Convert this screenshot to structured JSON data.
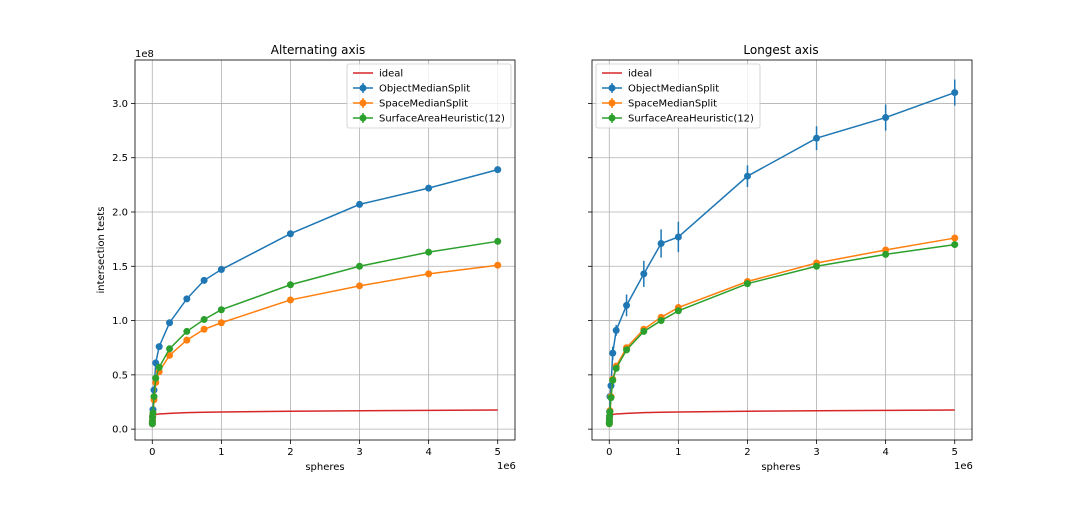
{
  "chart_data": {
    "shared": {
      "type": "line",
      "xlabel": "spheres",
      "ylabel": "intersection tests",
      "x_multiplier": "1e6",
      "y_multiplier": "1e8",
      "xlim": [
        -0.25,
        5.25
      ],
      "ylim": [
        -0.1,
        3.4
      ],
      "xticks": [
        0,
        1,
        2,
        3,
        4,
        5
      ],
      "yticks": [
        0.0,
        0.5,
        1.0,
        1.5,
        2.0,
        2.5,
        3.0
      ],
      "ytick_labels": [
        "0.0",
        "0.5",
        "1.0",
        "1.5",
        "2.0",
        "2.5",
        "3.0"
      ],
      "grid": true,
      "legend_position": "upper-right for left panel, upper-left for right panel",
      "colors": {
        "ideal": "#d62728",
        "ObjectMedianSplit": "#1f77b4",
        "SpaceMedianSplit": "#ff7f0e",
        "SurfaceAreaHeuristic(12)": "#2ca02c"
      }
    },
    "panels": [
      {
        "title": "Alternating axis",
        "series": [
          {
            "name": "ideal",
            "style": "line",
            "x": [
              0.001,
              0.002,
              0.005,
              0.01,
              0.025,
              0.05,
              0.1,
              0.25,
              0.5,
              0.75,
              1,
              2,
              3,
              4,
              5
            ],
            "values": [
              0.1,
              0.11,
              0.12,
              0.125,
              0.13,
              0.135,
              0.14,
              0.145,
              0.152,
              0.156,
              0.158,
              0.165,
              0.17,
              0.173,
              0.176
            ]
          },
          {
            "name": "ObjectMedianSplit",
            "style": "errorbar",
            "x": [
              0.001,
              0.002,
              0.005,
              0.01,
              0.025,
              0.05,
              0.1,
              0.25,
              0.5,
              0.75,
              1,
              2,
              3,
              4,
              5
            ],
            "values": [
              0.05,
              0.08,
              0.12,
              0.18,
              0.36,
              0.61,
              0.76,
              0.98,
              1.2,
              1.37,
              1.47,
              1.8,
              2.07,
              2.22,
              2.39
            ],
            "errors": [
              0,
              0,
              0,
              0,
              0,
              0,
              0,
              0,
              0,
              0,
              0,
              0,
              0,
              0,
              0
            ]
          },
          {
            "name": "SpaceMedianSplit",
            "style": "errorbar",
            "x": [
              0.001,
              0.002,
              0.005,
              0.01,
              0.025,
              0.05,
              0.1,
              0.25,
              0.5,
              0.75,
              1,
              2,
              3,
              4,
              5
            ],
            "values": [
              0.05,
              0.07,
              0.1,
              0.14,
              0.27,
              0.43,
              0.53,
              0.68,
              0.82,
              0.92,
              0.98,
              1.19,
              1.32,
              1.43,
              1.51
            ],
            "errors": [
              0,
              0,
              0,
              0,
              0,
              0,
              0,
              0,
              0,
              0,
              0,
              0,
              0,
              0,
              0
            ]
          },
          {
            "name": "SurfaceAreaHeuristic(12)",
            "style": "errorbar",
            "x": [
              0.001,
              0.002,
              0.005,
              0.01,
              0.025,
              0.05,
              0.1,
              0.25,
              0.5,
              0.75,
              1,
              2,
              3,
              4,
              5
            ],
            "values": [
              0.05,
              0.07,
              0.11,
              0.15,
              0.3,
              0.47,
              0.57,
              0.74,
              0.9,
              1.01,
              1.1,
              1.33,
              1.5,
              1.63,
              1.73
            ],
            "errors": [
              0,
              0,
              0,
              0,
              0,
              0,
              0,
              0,
              0,
              0,
              0,
              0,
              0,
              0,
              0
            ]
          }
        ]
      },
      {
        "title": "Longest axis",
        "series": [
          {
            "name": "ideal",
            "style": "line",
            "x": [
              0.001,
              0.002,
              0.005,
              0.01,
              0.025,
              0.05,
              0.1,
              0.25,
              0.5,
              0.75,
              1,
              2,
              3,
              4,
              5
            ],
            "values": [
              0.1,
              0.11,
              0.12,
              0.125,
              0.13,
              0.135,
              0.14,
              0.145,
              0.152,
              0.156,
              0.158,
              0.165,
              0.17,
              0.173,
              0.176
            ]
          },
          {
            "name": "ObjectMedianSplit",
            "style": "errorbar",
            "x": [
              0.001,
              0.002,
              0.005,
              0.01,
              0.025,
              0.05,
              0.1,
              0.25,
              0.5,
              0.75,
              1,
              2,
              3,
              4,
              5
            ],
            "values": [
              0.06,
              0.1,
              0.16,
              0.3,
              0.4,
              0.7,
              0.91,
              1.14,
              1.43,
              1.71,
              1.77,
              2.33,
              2.68,
              2.87,
              3.1
            ],
            "errors": [
              0.01,
              0.01,
              0.02,
              0.03,
              0.04,
              0.06,
              0.05,
              0.1,
              0.12,
              0.13,
              0.14,
              0.1,
              0.11,
              0.12,
              0.12
            ]
          },
          {
            "name": "SpaceMedianSplit",
            "style": "errorbar",
            "x": [
              0.001,
              0.002,
              0.005,
              0.01,
              0.025,
              0.05,
              0.1,
              0.25,
              0.5,
              0.75,
              1,
              2,
              3,
              4,
              5
            ],
            "values": [
              0.05,
              0.08,
              0.12,
              0.17,
              0.3,
              0.46,
              0.58,
              0.75,
              0.92,
              1.03,
              1.12,
              1.36,
              1.53,
              1.65,
              1.76
            ],
            "errors": [
              0,
              0,
              0,
              0,
              0,
              0,
              0,
              0,
              0,
              0,
              0,
              0,
              0,
              0,
              0
            ]
          },
          {
            "name": "SurfaceAreaHeuristic(12)",
            "style": "errorbar",
            "x": [
              0.001,
              0.002,
              0.005,
              0.01,
              0.025,
              0.05,
              0.1,
              0.25,
              0.5,
              0.75,
              1,
              2,
              3,
              4,
              5
            ],
            "values": [
              0.05,
              0.08,
              0.12,
              0.16,
              0.29,
              0.45,
              0.56,
              0.73,
              0.9,
              1.0,
              1.09,
              1.34,
              1.5,
              1.61,
              1.7
            ],
            "errors": [
              0,
              0,
              0,
              0,
              0,
              0,
              0,
              0,
              0,
              0,
              0,
              0,
              0,
              0,
              0
            ]
          }
        ]
      }
    ]
  }
}
